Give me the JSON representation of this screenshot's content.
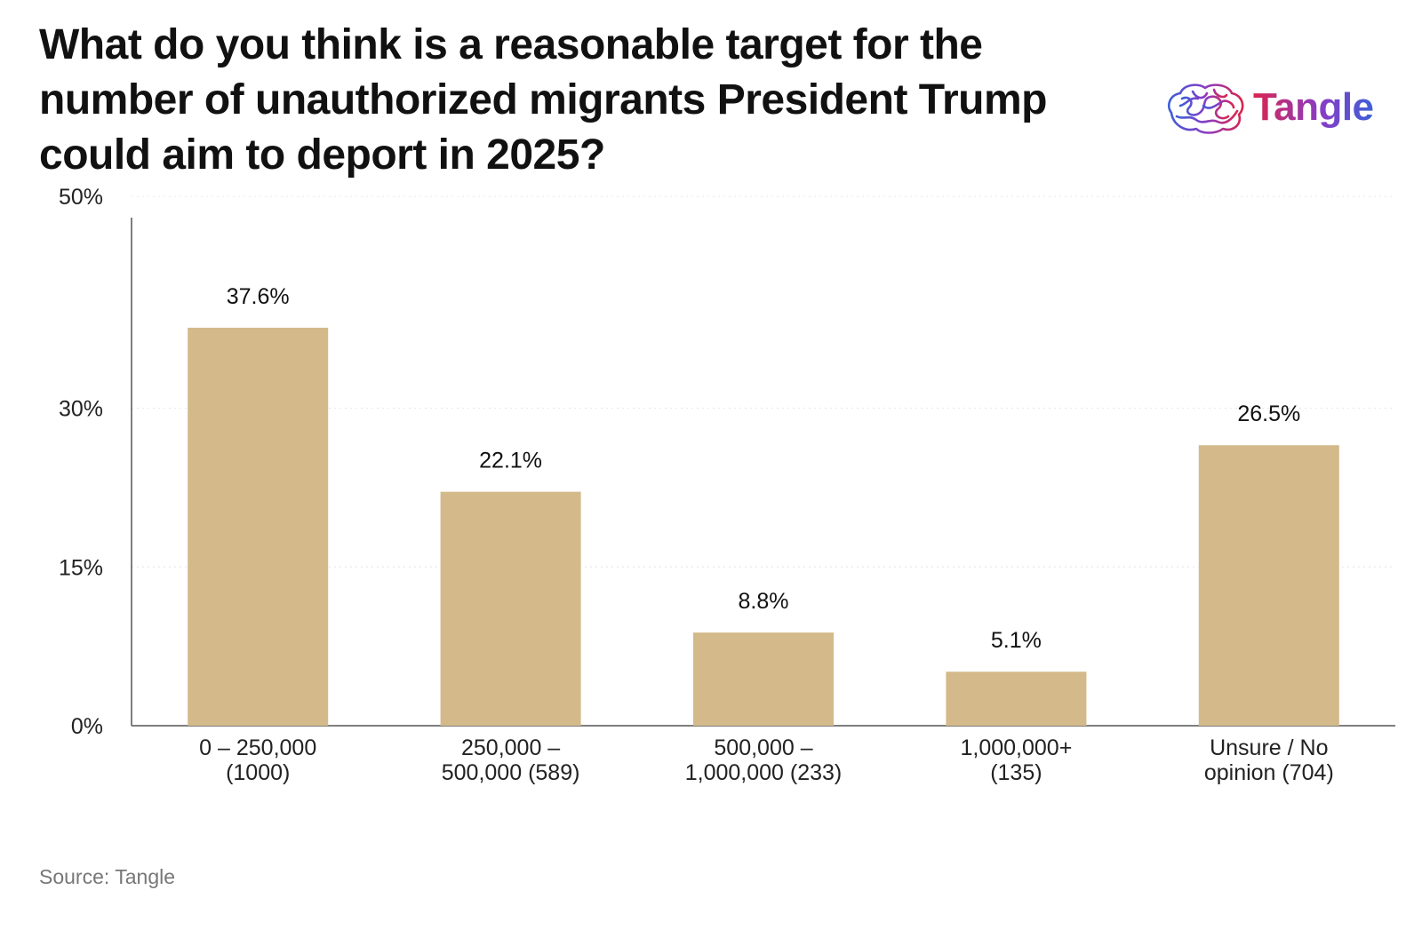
{
  "header": {
    "title": "What do you think is a reasonable target for the number of unauthorized migrants President Trump could aim to deport in 2025?",
    "logo_text": "Tangle"
  },
  "footer": {
    "source": "Source: Tangle"
  },
  "colors": {
    "bar": "#d4b98a",
    "axis": "#555555",
    "grid": "#e6e6e6"
  },
  "chart_data": {
    "type": "bar",
    "title": "What do you think is a reasonable target for the number of unauthorized migrants President Trump could aim to deport in 2025?",
    "categories": [
      [
        "0 – 250,000",
        "(1000)"
      ],
      [
        "250,000 –",
        "500,000 (589)"
      ],
      [
        "500,000 –",
        "1,000,000 (233)"
      ],
      [
        "1,000,000+",
        "(135)"
      ],
      [
        "Unsure / No",
        "opinion (704)"
      ]
    ],
    "values": [
      37.6,
      22.1,
      8.8,
      5.1,
      26.5
    ],
    "value_labels": [
      "37.6%",
      "22.1%",
      "8.8%",
      "5.1%",
      "26.5%"
    ],
    "yticks": [
      0,
      15,
      30,
      50
    ],
    "ytick_labels": [
      "0%",
      "15%",
      "30%",
      "50%"
    ],
    "ylim": [
      0,
      48
    ],
    "grid": true,
    "xlabel": "",
    "ylabel": ""
  }
}
